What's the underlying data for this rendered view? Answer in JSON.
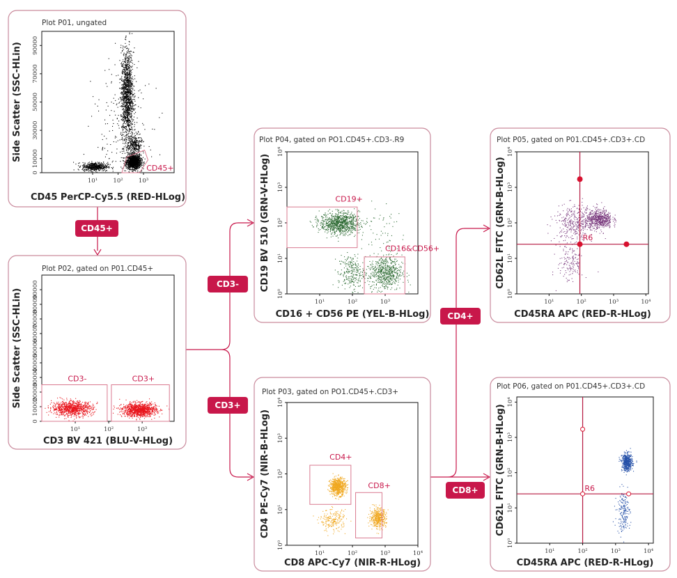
{
  "plots": [
    {
      "id": "P01",
      "title": "Plot P01, ungated",
      "xlabel": "CD45 PerCP-Cy5.5 (RED-HLog)",
      "ylabel": "Side Scatter (SSC-HLin)",
      "xscale": "log",
      "xlim": [
        0.1,
        16000
      ],
      "xticks": [
        [
          "10¹",
          10
        ],
        [
          "10²",
          100
        ],
        [
          "10³",
          1000
        ]
      ],
      "yscale": "linear",
      "ylim": [
        0,
        100000
      ],
      "yticks": [
        [
          "0",
          0
        ],
        [
          "10000",
          10000
        ],
        [
          "30000",
          30000
        ],
        [
          "50000",
          50000
        ],
        [
          "70000",
          70000
        ],
        [
          "90000",
          90000
        ]
      ],
      "color": "#000000",
      "populations": [
        {
          "x": 400,
          "y": 8000,
          "sx": 0.14,
          "sy": 2500,
          "n": 1400
        },
        {
          "x": 12,
          "y": 4500,
          "sx": 0.25,
          "sy": 1500,
          "n": 500
        },
        {
          "x": 220,
          "y": 55000,
          "sx": 0.12,
          "sy": 16000,
          "n": 1300
        },
        {
          "x": 420,
          "y": 20000,
          "sx": 0.15,
          "sy": 4000,
          "n": 300
        },
        {
          "x": 150,
          "y": 30000,
          "sx": 0.6,
          "sy": 25000,
          "n": 200
        }
      ],
      "gates": [
        {
          "type": "polygon",
          "label": "CD45+",
          "points": [
            [
              140,
              0
            ],
            [
              220,
              11000
            ],
            [
              1100,
              16000
            ],
            [
              1500,
              9000
            ],
            [
              700,
              0
            ]
          ],
          "label_at": [
            1300,
            1500
          ]
        }
      ]
    },
    {
      "id": "P02",
      "title": "Plot P02, gated on P01.CD45+",
      "xlabel": "CD3 BV 421 (BLU-V-HLog)",
      "ylabel": "Side Scatter (SSC-HLin)",
      "xscale": "log",
      "xlim": [
        1,
        9000
      ],
      "xticks": [
        [
          "10¹",
          10
        ],
        [
          "10²",
          100
        ],
        [
          "10³",
          1000
        ]
      ],
      "yscale": "linear",
      "ylim": [
        0,
        100000
      ],
      "yticks": [
        [
          "0",
          0
        ],
        [
          "10000",
          10000
        ],
        [
          "20000",
          20000
        ],
        [
          "30000",
          30000
        ],
        [
          "40000",
          40000
        ],
        [
          "50000",
          50000
        ],
        [
          "60000",
          60000
        ],
        [
          "70000",
          70000
        ],
        [
          "80000",
          80000
        ],
        [
          "90000",
          90000
        ]
      ],
      "color": "#e8141c",
      "populations": [
        {
          "x": 8,
          "y": 9000,
          "sx": 0.3,
          "sy": 2500,
          "n": 900
        },
        {
          "x": 800,
          "y": 8000,
          "sx": 0.25,
          "sy": 2300,
          "n": 1100
        }
      ],
      "gates": [
        {
          "type": "rect",
          "label": "CD3-",
          "x": [
            1,
            90
          ],
          "y": [
            0,
            25000
          ],
          "label_at": [
            6,
            27500
          ]
        },
        {
          "type": "rect",
          "label": "CD3+",
          "x": [
            120,
            6500
          ],
          "y": [
            0,
            25000
          ],
          "label_at": [
            500,
            27500
          ]
        }
      ]
    },
    {
      "id": "P04",
      "title": "Plot P04, gated on PO1.CD45+.CD3-.R9",
      "xlabel": "CD16 + CD56 PE (YEL-B-HLog)",
      "ylabel": "CD19 BV 510 (GRN-V-HLog)",
      "xscale": "log",
      "xlim": [
        1,
        10000
      ],
      "xticks": [
        [
          "10¹",
          10
        ],
        [
          "10²",
          100
        ],
        [
          "10³",
          1000
        ]
      ],
      "yscale": "log",
      "ylim": [
        1,
        10000
      ],
      "yticks": [
        [
          "10⁰",
          1
        ],
        [
          "10¹",
          10
        ],
        [
          "10²",
          100
        ],
        [
          "10³",
          1000
        ],
        [
          "10⁴",
          10000
        ]
      ],
      "color": "#2e6b34",
      "populations": [
        {
          "x": 40,
          "y": 100,
          "sx": 0.3,
          "sy": 0.15,
          "n": 900
        },
        {
          "x": 1000,
          "y": 4,
          "sx": 0.25,
          "sy": 0.25,
          "n": 600
        },
        {
          "x": 90,
          "y": 4,
          "sx": 0.2,
          "sy": 0.25,
          "n": 250
        },
        {
          "x": 700,
          "y": 60,
          "sx": 0.4,
          "sy": 0.4,
          "n": 60
        }
      ],
      "gates": [
        {
          "type": "rect",
          "label": "CD19+",
          "x": [
            1,
            140
          ],
          "y": [
            20,
            280
          ],
          "label_at": [
            30,
            400
          ]
        },
        {
          "type": "rect",
          "label": "CD16&CD56+",
          "x": [
            230,
            4000
          ],
          "y": [
            1,
            11
          ],
          "label_at": [
            1000,
            16
          ]
        }
      ]
    },
    {
      "id": "P05",
      "title": "Plot P05, gated on P01.CD45+.CD3+.CD",
      "xlabel": "CD45RA APC (RED-R-HLog)",
      "ylabel": "CD62L FITC (GRN-B-HLog)",
      "xscale": "log",
      "xlim": [
        1,
        12000
      ],
      "xticks": [
        [
          "10¹",
          10
        ],
        [
          "10²",
          100
        ],
        [
          "10³",
          1000
        ],
        [
          "10⁴",
          10000
        ]
      ],
      "yscale": "log",
      "ylim": [
        1,
        10000
      ],
      "yticks": [
        [
          "10⁰",
          1
        ],
        [
          "10¹",
          10
        ],
        [
          "10²",
          100
        ],
        [
          "10³",
          1000
        ],
        [
          "10⁴",
          10000
        ]
      ],
      "color": "#7a3a7e",
      "populations": [
        {
          "x": 350,
          "y": 130,
          "sx": 0.2,
          "sy": 0.13,
          "n": 600
        },
        {
          "x": 60,
          "y": 100,
          "sx": 0.3,
          "sy": 0.25,
          "n": 350
        },
        {
          "x": 45,
          "y": 8,
          "sx": 0.2,
          "sy": 0.3,
          "n": 150
        }
      ],
      "gates": [
        {
          "type": "quadrant",
          "label": "R6",
          "x": 90,
          "y": 25,
          "handles": [
            [
              90,
              1700
            ],
            [
              90,
              25
            ],
            [
              2500,
              25
            ]
          ],
          "handle_style": "filled",
          "label_at": [
            110,
            32
          ]
        }
      ]
    },
    {
      "id": "P03",
      "title": "Plot P03, gated on PO1.CD45+.CD3+",
      "xlabel": "CD8 APC-Cy7 (NIR-R-HLog)",
      "ylabel": "CD4 PE-Cy7 (NIR-B-HLog)",
      "xscale": "log",
      "xlim": [
        1,
        10000
      ],
      "xticks": [
        [
          "10¹",
          10
        ],
        [
          "10²",
          100
        ],
        [
          "10³",
          1000
        ],
        [
          "10⁴",
          10000
        ]
      ],
      "yscale": "log",
      "ylim": [
        1,
        10000
      ],
      "yticks": [
        [
          "10⁰",
          1
        ],
        [
          "10¹",
          10
        ],
        [
          "10²",
          100
        ],
        [
          "10³",
          1000
        ],
        [
          "10⁴",
          10000
        ]
      ],
      "color": "#f0a820",
      "populations": [
        {
          "x": 35,
          "y": 45,
          "sx": 0.12,
          "sy": 0.12,
          "n": 700
        },
        {
          "x": 600,
          "y": 6,
          "sx": 0.12,
          "sy": 0.13,
          "n": 450
        },
        {
          "x": 25,
          "y": 5,
          "sx": 0.2,
          "sy": 0.15,
          "n": 200
        }
      ],
      "gates": [
        {
          "type": "rect",
          "label": "CD4+",
          "x": [
            5,
            90
          ],
          "y": [
            14,
            175
          ],
          "label_at": [
            20,
            250
          ]
        },
        {
          "type": "rect",
          "label": "CD8+",
          "x": [
            125,
            800
          ],
          "y": [
            1.6,
            30
          ],
          "label_at": [
            300,
            40
          ]
        }
      ]
    },
    {
      "id": "P06",
      "title": "Plot P06, gated on P01.CD45+.CD3+.CD",
      "xlabel": "CD45RA APC (RED-R-HLog)",
      "ylabel": "CD62L FITC (GRN-B-HLog)",
      "xscale": "log",
      "xlim": [
        1,
        14000
      ],
      "xticks": [
        [
          "10¹",
          10
        ],
        [
          "10²",
          100
        ],
        [
          "10³",
          1000
        ],
        [
          "10⁴",
          10000
        ]
      ],
      "yscale": "log",
      "ylim": [
        1,
        14000
      ],
      "yticks": [
        [
          "10⁰",
          1
        ],
        [
          "10¹",
          10
        ],
        [
          "10²",
          100
        ],
        [
          "10³",
          1000
        ],
        [
          "10⁴",
          10000
        ]
      ],
      "color": "#2550a8",
      "populations": [
        {
          "x": 2200,
          "y": 200,
          "sx": 0.08,
          "sy": 0.12,
          "n": 500
        },
        {
          "x": 1700,
          "y": 8,
          "sx": 0.1,
          "sy": 0.3,
          "n": 180
        }
      ],
      "gates": [
        {
          "type": "quadrant",
          "label": "R6",
          "x": 100,
          "y": 25,
          "handles": [
            [
              100,
              1700
            ],
            [
              100,
              25
            ],
            [
              2500,
              25
            ]
          ],
          "handle_style": "open",
          "label_at": [
            115,
            30
          ]
        }
      ]
    }
  ],
  "badges": {
    "cd45": "CD45+",
    "cd3neg": "CD3-",
    "cd3pos": "CD3+",
    "cd4": "CD4+",
    "cd8": "CD8+"
  },
  "colors": {
    "accent": "#c8174a",
    "panel_border": "#c98a9c"
  }
}
